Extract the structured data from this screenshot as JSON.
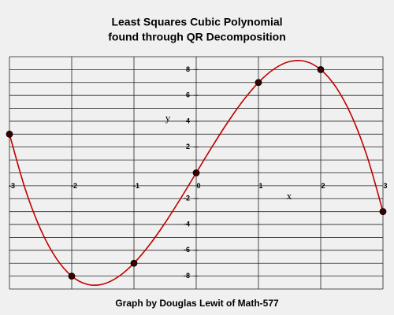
{
  "chart_data": {
    "type": "line",
    "title": [
      "Least Squares Cubic Polynomial",
      "found through QR Decomposition"
    ],
    "footer": "Graph by Douglas Lewit of Math-577",
    "x_label": "x",
    "y_label": "y",
    "xlim": [
      -3,
      3
    ],
    "ylim": [
      -9,
      9
    ],
    "xticks": [
      -3,
      -2,
      -1,
      0,
      1,
      2,
      3
    ],
    "yticks": [
      -8,
      -6,
      -4,
      -2,
      2,
      4,
      6,
      8
    ],
    "y_gridlines": [
      -9,
      -8,
      -7,
      -6,
      -5,
      -4,
      -3,
      -2,
      -1,
      0,
      1,
      2,
      3,
      4,
      5,
      6,
      7,
      8,
      9
    ],
    "grid": true,
    "series": [
      {
        "kind": "curve",
        "color": "#c00000",
        "x": [
          -3,
          -2.75,
          -2.5,
          -2.25,
          -2,
          -1.75,
          -1.5,
          -1.25,
          -1,
          -0.75,
          -0.5,
          -0.25,
          0,
          0.25,
          0.5,
          0.75,
          1,
          1.25,
          1.5,
          1.75,
          2,
          2.25,
          2.5,
          2.75,
          3
        ],
        "values": [
          3,
          -1.203125,
          -4.375,
          -6.609375,
          -8,
          -8.640625,
          -8.625,
          -8.046875,
          -7,
          -5.578125,
          -3.875,
          -1.984375,
          0,
          1.984375,
          3.875,
          5.578125,
          7,
          8.046875,
          8.625,
          8.640625,
          8,
          6.609375,
          4.375,
          1.203125,
          -3
        ]
      },
      {
        "kind": "points",
        "color": "#3a0000",
        "x": [
          -3,
          -2,
          -1,
          0,
          1,
          2,
          3
        ],
        "values": [
          3,
          -8,
          -7,
          0,
          7,
          8,
          -3
        ]
      }
    ]
  }
}
